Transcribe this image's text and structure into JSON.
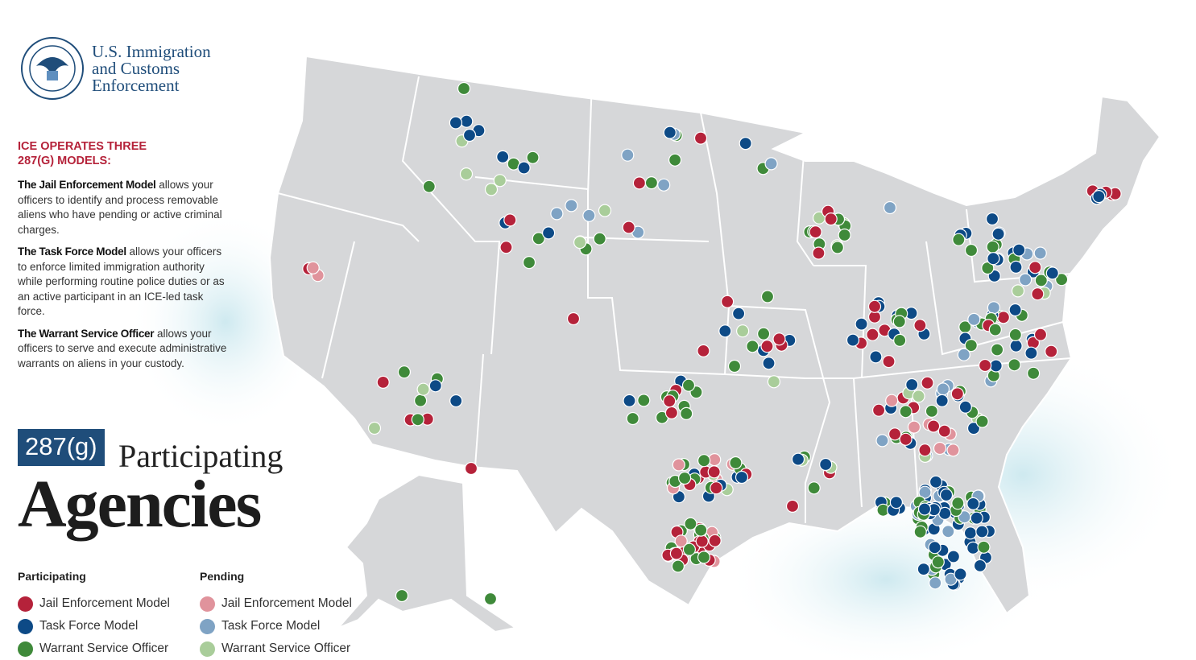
{
  "header": {
    "agency": [
      "U.S. Immigration",
      "and Customs",
      "Enforcement"
    ]
  },
  "intro": {
    "heading": "ICE OPERATES THREE 287(G) MODELS:",
    "models": [
      {
        "name": "The Jail Enforcement Model",
        "text": "allows your officers to identify and process removable aliens who have pending or active criminal charges."
      },
      {
        "name": "The Task Force Model",
        "text": "allows your officers to enforce limited immigration authority while performing routine police duties or as an active participant in an ICE-led task force."
      },
      {
        "name": "The Warrant Service Officer",
        "text": "allows your officers to serve and execute administrative warrants on aliens in your custody."
      }
    ]
  },
  "title": {
    "badge": "287(g)",
    "line1": "Participating",
    "line2": "Agencies"
  },
  "legend": {
    "groups": [
      {
        "title": "Participating",
        "items": [
          {
            "label": "Jail Enforcement Model",
            "color": "#b5223a"
          },
          {
            "label": "Task Force Model",
            "color": "#0d4a86"
          },
          {
            "label": "Warrant Service Officer",
            "color": "#3f8a3a"
          }
        ]
      },
      {
        "title": "Pending",
        "items": [
          {
            "label": "Jail Enforcement Model",
            "color": "#e0939c"
          },
          {
            "label": "Task Force Model",
            "color": "#7fa3c4"
          },
          {
            "label": "Warrant Service Officer",
            "color": "#a9cd9a"
          }
        ]
      }
    ]
  }
}
